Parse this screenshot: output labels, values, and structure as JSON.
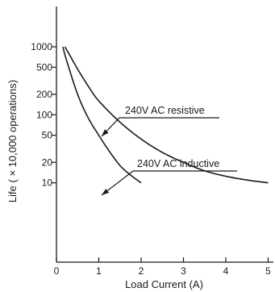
{
  "chart_data": {
    "type": "line",
    "xlabel": "Load Current (A)",
    "ylabel": "Life ( × 10,000 operations)",
    "x_ticks": [
      "0",
      "1",
      "2",
      "3",
      "4",
      "5"
    ],
    "y_ticks": [
      "10",
      "20",
      "50",
      "100",
      "200",
      "500",
      "1000"
    ],
    "xlim": [
      0,
      5.25
    ],
    "ylim": [
      8.5,
      2500
    ],
    "y_scale": "log",
    "grid": false,
    "legend": "none",
    "line_color": "#1a1a1a",
    "series": [
      {
        "name": "240V AC resistive",
        "x": [
          0.2,
          0.3,
          0.5,
          0.75,
          1.0,
          1.5,
          2.0,
          2.5,
          3.0,
          3.5,
          4.0,
          4.5,
          5.0
        ],
        "y": [
          1000,
          780,
          470,
          265,
          160,
          78,
          44,
          28,
          20,
          15,
          12.5,
          11,
          10
        ]
      },
      {
        "name": "240V AC inductive",
        "x": [
          0.15,
          0.25,
          0.5,
          0.75,
          1.0,
          1.25,
          1.5,
          1.75,
          2.0
        ],
        "y": [
          1000,
          600,
          200,
          90,
          50,
          29,
          18,
          13,
          10
        ]
      }
    ],
    "annotations": [
      {
        "text": "240V AC resistive",
        "series": 0
      },
      {
        "text": "240V AC inductive",
        "series": 1
      }
    ]
  }
}
